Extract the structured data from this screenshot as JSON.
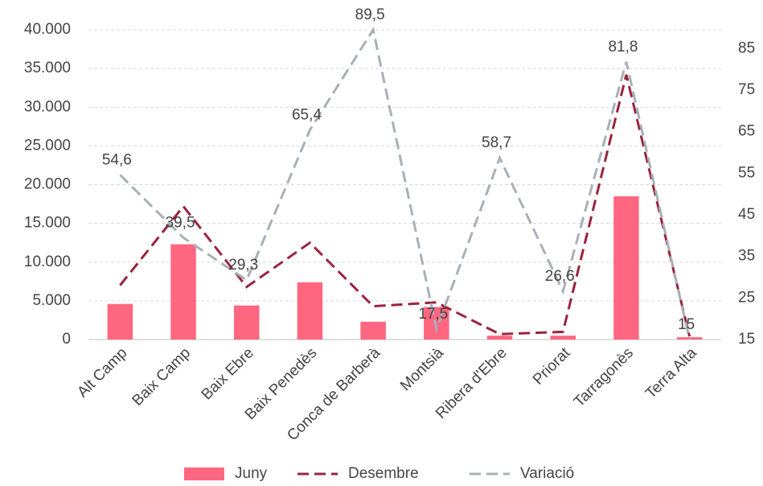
{
  "chart_data": {
    "type": "bar-line",
    "categories": [
      "Alt Camp",
      "Baix Camp",
      "Baix Ebre",
      "Baix Penedès",
      "Conca de Barberà",
      "Montsià",
      "Ribera d'Ebre",
      "Priorat",
      "Tarragonès",
      "Terra Alta"
    ],
    "series": [
      {
        "name": "Juny",
        "type": "bar",
        "color": "#ff6680",
        "values": [
          4600,
          12300,
          4400,
          7400,
          2300,
          4200,
          500,
          500,
          18500,
          300
        ]
      },
      {
        "name": "Desembre",
        "type": "line",
        "color": "#9b2340",
        "values": [
          7000,
          17200,
          6800,
          12500,
          4300,
          4800,
          700,
          1000,
          34200,
          400
        ]
      },
      {
        "name": "Variació",
        "type": "line",
        "axis": "y2",
        "color": "#a8b0b8",
        "values": [
          54.6,
          39.5,
          29.3,
          65.4,
          89.5,
          17.5,
          58.7,
          26.6,
          81.8,
          15
        ],
        "value_labels": [
          "54,6",
          "39,5",
          "29,3",
          "65,4",
          "89,5",
          "17,5",
          "58,7",
          "26,6",
          "81,8",
          "15"
        ]
      }
    ],
    "ylim": [
      0,
      40000
    ],
    "yticks": [
      {
        "value": 0,
        "label": "0"
      },
      {
        "value": 5000,
        "label": "5.000"
      },
      {
        "value": 10000,
        "label": "10.000"
      },
      {
        "value": 15000,
        "label": "15.000"
      },
      {
        "value": 20000,
        "label": "20.000"
      },
      {
        "value": 25000,
        "label": "25.000"
      },
      {
        "value": 30000,
        "label": "30.000"
      },
      {
        "value": 35000,
        "label": "35.000"
      },
      {
        "value": 40000,
        "label": "40.000"
      }
    ],
    "y2lim": [
      15,
      89.5
    ],
    "y2ticks": [
      15,
      25,
      35,
      45,
      55,
      65,
      75,
      85
    ],
    "grid": true,
    "legend": "bottom"
  }
}
